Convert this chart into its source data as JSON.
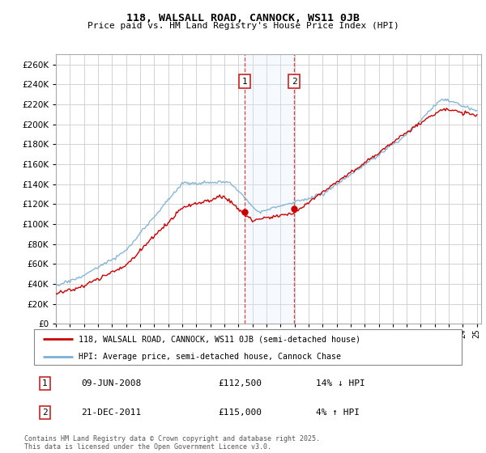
{
  "title_line1": "118, WALSALL ROAD, CANNOCK, WS11 0JB",
  "title_line2": "Price paid vs. HM Land Registry's House Price Index (HPI)",
  "ylim": [
    0,
    270000
  ],
  "yticks": [
    0,
    20000,
    40000,
    60000,
    80000,
    100000,
    120000,
    140000,
    160000,
    180000,
    200000,
    220000,
    240000,
    260000
  ],
  "hpi_color": "#7ab0d4",
  "price_color": "#cc0000",
  "sale1_year": 2008.44,
  "sale1_price": 112500,
  "sale2_year": 2011.97,
  "sale2_price": 115000,
  "marker1_label": "1",
  "marker2_label": "2",
  "marker1_date": "09-JUN-2008",
  "marker1_price": "£112,500",
  "marker1_hpi": "14% ↓ HPI",
  "marker2_date": "21-DEC-2011",
  "marker2_price": "£115,000",
  "marker2_hpi": "4% ↑ HPI",
  "legend_line1": "118, WALSALL ROAD, CANNOCK, WS11 0JB (semi-detached house)",
  "legend_line2": "HPI: Average price, semi-detached house, Cannock Chase",
  "footer": "Contains HM Land Registry data © Crown copyright and database right 2025.\nThis data is licensed under the Open Government Licence v3.0.",
  "background_color": "#ffffff",
  "grid_color": "#cccccc",
  "vline_color": "#dd4444",
  "span_color": "#ddeeff"
}
